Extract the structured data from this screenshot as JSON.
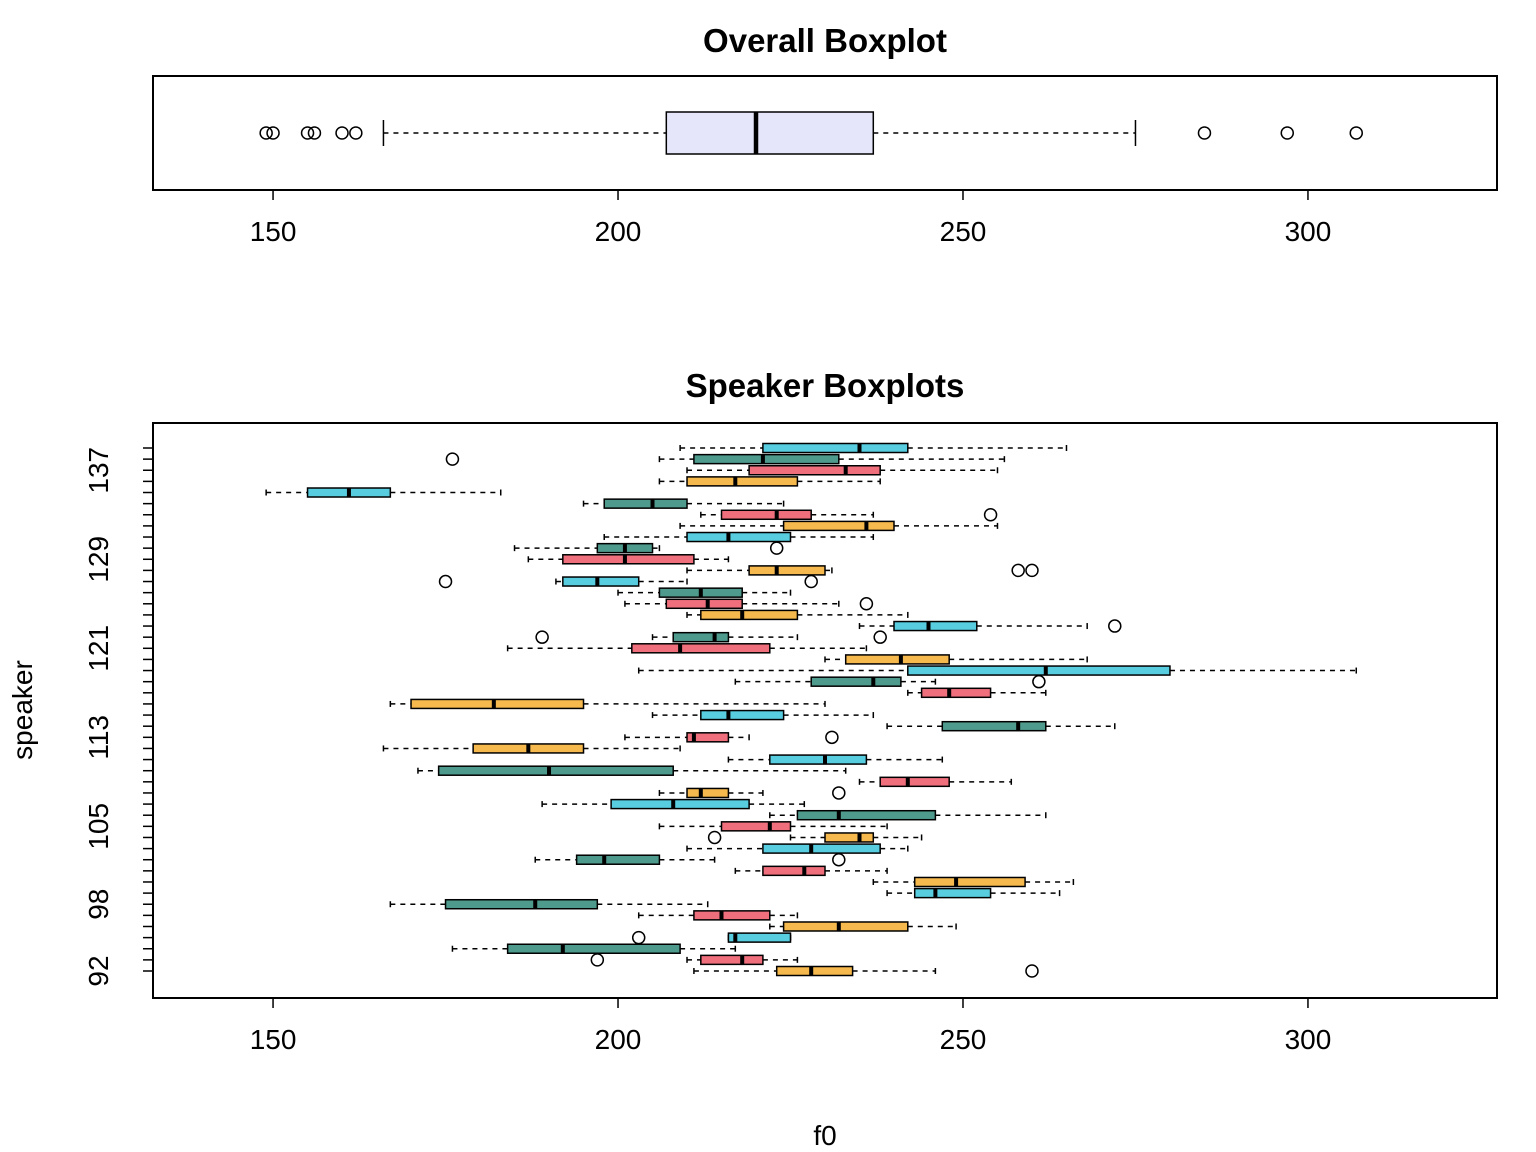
{
  "chart_data": [
    {
      "type": "boxplot",
      "orientation": "horizontal",
      "title": "Overall Boxplot",
      "xlabel": "",
      "ylabel": "",
      "xlim": [
        132.6,
        327.4
      ],
      "xticks": [
        150,
        200,
        250,
        300
      ],
      "fill": "#e6e6fa",
      "box": {
        "whisker_low": 166,
        "q1": 207,
        "median": 220,
        "q3": 237,
        "whisker_high": 275
      },
      "outliers": [
        149,
        150,
        155,
        156,
        160,
        162,
        285,
        297,
        307
      ]
    },
    {
      "type": "boxplot",
      "orientation": "horizontal",
      "title": "Speaker Boxplots",
      "xlabel": "f0",
      "ylabel": "speaker",
      "xlim": [
        132.6,
        327.4
      ],
      "xticks": [
        150,
        200,
        250,
        300
      ],
      "yticks": [
        "92",
        "98",
        "105",
        "113",
        "121",
        "129",
        "137"
      ],
      "palette": {
        "orange": "#f5b94d",
        "pink": "#ef6f7d",
        "teal": "#4e9a8d",
        "cyan": "#58cde0"
      },
      "boxes": [
        {
          "speaker": "92",
          "color": "orange",
          "whisker_low": 211,
          "q1": 223,
          "median": 228,
          "q3": 234,
          "whisker_high": 246,
          "outliers": [
            260
          ]
        },
        {
          "speaker": "93",
          "color": "pink",
          "whisker_low": 210,
          "q1": 212,
          "median": 218,
          "q3": 221,
          "whisker_high": 226,
          "outliers": [
            197
          ]
        },
        {
          "speaker": "94",
          "color": "teal",
          "whisker_low": 176,
          "q1": 184,
          "median": 192,
          "q3": 209,
          "whisker_high": 217,
          "outliers": []
        },
        {
          "speaker": "95",
          "color": "cyan",
          "whisker_low": 216,
          "q1": 216,
          "median": 217,
          "q3": 225,
          "whisker_high": 225,
          "outliers": [
            203
          ]
        },
        {
          "speaker": "96",
          "color": "orange",
          "whisker_low": 222,
          "q1": 224,
          "median": 232,
          "q3": 242,
          "whisker_high": 249,
          "outliers": []
        },
        {
          "speaker": "97",
          "color": "pink",
          "whisker_low": 203,
          "q1": 211,
          "median": 215,
          "q3": 222,
          "whisker_high": 226,
          "outliers": []
        },
        {
          "speaker": "98",
          "color": "teal",
          "whisker_low": 167,
          "q1": 175,
          "median": 188,
          "q3": 197,
          "whisker_high": 213,
          "outliers": []
        },
        {
          "speaker": "99",
          "color": "cyan",
          "whisker_low": 239,
          "q1": 243,
          "median": 246,
          "q3": 254,
          "whisker_high": 264,
          "outliers": []
        },
        {
          "speaker": "100",
          "color": "orange",
          "whisker_low": 237,
          "q1": 243,
          "median": 249,
          "q3": 259,
          "whisker_high": 266,
          "outliers": []
        },
        {
          "speaker": "101",
          "color": "pink",
          "whisker_low": 217,
          "q1": 221,
          "median": 227,
          "q3": 230,
          "whisker_high": 239,
          "outliers": []
        },
        {
          "speaker": "102",
          "color": "teal",
          "whisker_low": 188,
          "q1": 194,
          "median": 198,
          "q3": 206,
          "whisker_high": 214,
          "outliers": [
            232
          ]
        },
        {
          "speaker": "103",
          "color": "cyan",
          "whisker_low": 210,
          "q1": 221,
          "median": 228,
          "q3": 238,
          "whisker_high": 242,
          "outliers": []
        },
        {
          "speaker": "104",
          "color": "orange",
          "whisker_low": 225,
          "q1": 230,
          "median": 235,
          "q3": 237,
          "whisker_high": 244,
          "outliers": [
            214
          ]
        },
        {
          "speaker": "105",
          "color": "pink",
          "whisker_low": 206,
          "q1": 215,
          "median": 222,
          "q3": 225,
          "whisker_high": 239,
          "outliers": []
        },
        {
          "speaker": "106",
          "color": "teal",
          "whisker_low": 222,
          "q1": 226,
          "median": 232,
          "q3": 246,
          "whisker_high": 262,
          "outliers": []
        },
        {
          "speaker": "107",
          "color": "cyan",
          "whisker_low": 189,
          "q1": 199,
          "median": 208,
          "q3": 219,
          "whisker_high": 227,
          "outliers": []
        },
        {
          "speaker": "108",
          "color": "orange",
          "whisker_low": 206,
          "q1": 210,
          "median": 212,
          "q3": 216,
          "whisker_high": 221,
          "outliers": [
            232
          ]
        },
        {
          "speaker": "109",
          "color": "pink",
          "whisker_low": 235,
          "q1": 238,
          "median": 242,
          "q3": 248,
          "whisker_high": 257,
          "outliers": []
        },
        {
          "speaker": "110",
          "color": "teal",
          "whisker_low": 171,
          "q1": 174,
          "median": 190,
          "q3": 208,
          "whisker_high": 233,
          "outliers": []
        },
        {
          "speaker": "111",
          "color": "cyan",
          "whisker_low": 216,
          "q1": 222,
          "median": 230,
          "q3": 236,
          "whisker_high": 247,
          "outliers": []
        },
        {
          "speaker": "112",
          "color": "orange",
          "whisker_low": 166,
          "q1": 179,
          "median": 187,
          "q3": 195,
          "whisker_high": 209,
          "outliers": []
        },
        {
          "speaker": "113",
          "color": "pink",
          "whisker_low": 201,
          "q1": 210,
          "median": 211,
          "q3": 216,
          "whisker_high": 219,
          "outliers": [
            231
          ]
        },
        {
          "speaker": "114",
          "color": "teal",
          "whisker_low": 239,
          "q1": 247,
          "median": 258,
          "q3": 262,
          "whisker_high": 272,
          "outliers": []
        },
        {
          "speaker": "115",
          "color": "cyan",
          "whisker_low": 205,
          "q1": 212,
          "median": 216,
          "q3": 224,
          "whisker_high": 237,
          "outliers": []
        },
        {
          "speaker": "116",
          "color": "orange",
          "whisker_low": 167,
          "q1": 170,
          "median": 182,
          "q3": 195,
          "whisker_high": 230,
          "outliers": []
        },
        {
          "speaker": "117",
          "color": "pink",
          "whisker_low": 242,
          "q1": 244,
          "median": 248,
          "q3": 254,
          "whisker_high": 262,
          "outliers": []
        },
        {
          "speaker": "118",
          "color": "teal",
          "whisker_low": 217,
          "q1": 228,
          "median": 237,
          "q3": 241,
          "whisker_high": 246,
          "outliers": [
            261
          ]
        },
        {
          "speaker": "119",
          "color": "cyan",
          "whisker_low": 203,
          "q1": 242,
          "median": 262,
          "q3": 280,
          "whisker_high": 307,
          "outliers": []
        },
        {
          "speaker": "120",
          "color": "orange",
          "whisker_low": 230,
          "q1": 233,
          "median": 241,
          "q3": 248,
          "whisker_high": 268,
          "outliers": []
        },
        {
          "speaker": "121",
          "color": "pink",
          "whisker_low": 184,
          "q1": 202,
          "median": 209,
          "q3": 222,
          "whisker_high": 236,
          "outliers": []
        },
        {
          "speaker": "122",
          "color": "teal",
          "whisker_low": 205,
          "q1": 208,
          "median": 214,
          "q3": 216,
          "whisker_high": 226,
          "outliers": [
            189,
            238
          ]
        },
        {
          "speaker": "123",
          "color": "cyan",
          "whisker_low": 235,
          "q1": 240,
          "median": 245,
          "q3": 252,
          "whisker_high": 268,
          "outliers": [
            272
          ]
        },
        {
          "speaker": "124",
          "color": "orange",
          "whisker_low": 210,
          "q1": 212,
          "median": 218,
          "q3": 226,
          "whisker_high": 242,
          "outliers": []
        },
        {
          "speaker": "125",
          "color": "pink",
          "whisker_low": 201,
          "q1": 207,
          "median": 213,
          "q3": 218,
          "whisker_high": 232,
          "outliers": [
            236
          ]
        },
        {
          "speaker": "126",
          "color": "teal",
          "whisker_low": 200,
          "q1": 206,
          "median": 212,
          "q3": 218,
          "whisker_high": 225,
          "outliers": []
        },
        {
          "speaker": "127",
          "color": "cyan",
          "whisker_low": 191,
          "q1": 192,
          "median": 197,
          "q3": 203,
          "whisker_high": 210,
          "outliers": [
            175,
            228
          ]
        },
        {
          "speaker": "128",
          "color": "orange",
          "whisker_low": 210,
          "q1": 219,
          "median": 223,
          "q3": 230,
          "whisker_high": 231,
          "outliers": [
            258,
            260
          ]
        },
        {
          "speaker": "129",
          "color": "pink",
          "whisker_low": 187,
          "q1": 192,
          "median": 201,
          "q3": 211,
          "whisker_high": 216,
          "outliers": []
        },
        {
          "speaker": "130",
          "color": "teal",
          "whisker_low": 185,
          "q1": 197,
          "median": 201,
          "q3": 205,
          "whisker_high": 206,
          "outliers": [
            223
          ]
        },
        {
          "speaker": "131",
          "color": "cyan",
          "whisker_low": 198,
          "q1": 210,
          "median": 216,
          "q3": 225,
          "whisker_high": 237,
          "outliers": []
        },
        {
          "speaker": "132",
          "color": "orange",
          "whisker_low": 209,
          "q1": 224,
          "median": 236,
          "q3": 240,
          "whisker_high": 255,
          "outliers": []
        },
        {
          "speaker": "133",
          "color": "pink",
          "whisker_low": 212,
          "q1": 215,
          "median": 223,
          "q3": 228,
          "whisker_high": 237,
          "outliers": [
            254
          ]
        },
        {
          "speaker": "134",
          "color": "teal",
          "whisker_low": 195,
          "q1": 198,
          "median": 205,
          "q3": 210,
          "whisker_high": 224,
          "outliers": []
        },
        {
          "speaker": "135",
          "color": "cyan",
          "whisker_low": 149,
          "q1": 155,
          "median": 161,
          "q3": 167,
          "whisker_high": 183,
          "outliers": []
        },
        {
          "speaker": "136",
          "color": "orange",
          "whisker_low": 206,
          "q1": 210,
          "median": 217,
          "q3": 226,
          "whisker_high": 238,
          "outliers": []
        },
        {
          "speaker": "137",
          "color": "pink",
          "whisker_low": 210,
          "q1": 219,
          "median": 233,
          "q3": 238,
          "whisker_high": 255,
          "outliers": []
        },
        {
          "speaker": "138",
          "color": "teal",
          "whisker_low": 206,
          "q1": 211,
          "median": 221,
          "q3": 232,
          "whisker_high": 256,
          "outliers": [
            176
          ]
        },
        {
          "speaker": "139",
          "color": "cyan",
          "whisker_low": 209,
          "q1": 221,
          "median": 235,
          "q3": 242,
          "whisker_high": 265,
          "outliers": []
        }
      ]
    }
  ]
}
